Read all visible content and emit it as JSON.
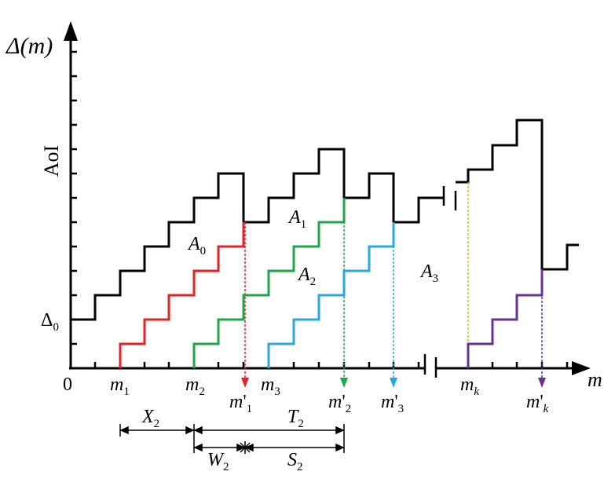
{
  "axes": {
    "y_label": "Δ(m)",
    "y_quantity": "AoI",
    "x_label": "m",
    "origin": "0",
    "delta0": "Δ",
    "delta0_sub": "0"
  },
  "x_ticks": [
    {
      "base": "m",
      "sub": "1",
      "prime": ""
    },
    {
      "base": "m",
      "sub": "2",
      "prime": ""
    },
    {
      "base": "m",
      "sub": "1",
      "prime": "'"
    },
    {
      "base": "m",
      "sub": "3",
      "prime": ""
    },
    {
      "base": "m",
      "sub": "2",
      "prime": "'"
    },
    {
      "base": "m",
      "sub": "3",
      "prime": "'"
    },
    {
      "base": "m",
      "sub": "k",
      "prime": ""
    },
    {
      "base": "m",
      "sub": "k",
      "prime": "'"
    }
  ],
  "areas": [
    {
      "base": "A",
      "sub": "0"
    },
    {
      "base": "A",
      "sub": "1"
    },
    {
      "base": "A",
      "sub": "2"
    },
    {
      "base": "A",
      "sub": "3"
    }
  ],
  "intervals": [
    {
      "base": "X",
      "sub": "2"
    },
    {
      "base": "T",
      "sub": "2"
    },
    {
      "base": "W",
      "sub": "2"
    },
    {
      "base": "S",
      "sub": "2"
    }
  ],
  "colors": {
    "age_curve": "#000000",
    "packet1": "#e8202a",
    "packet2": "#1fa64a",
    "packet3": "#29a8de",
    "packetk_dashed": "#e8b820",
    "packetk": "#6a3096"
  }
}
